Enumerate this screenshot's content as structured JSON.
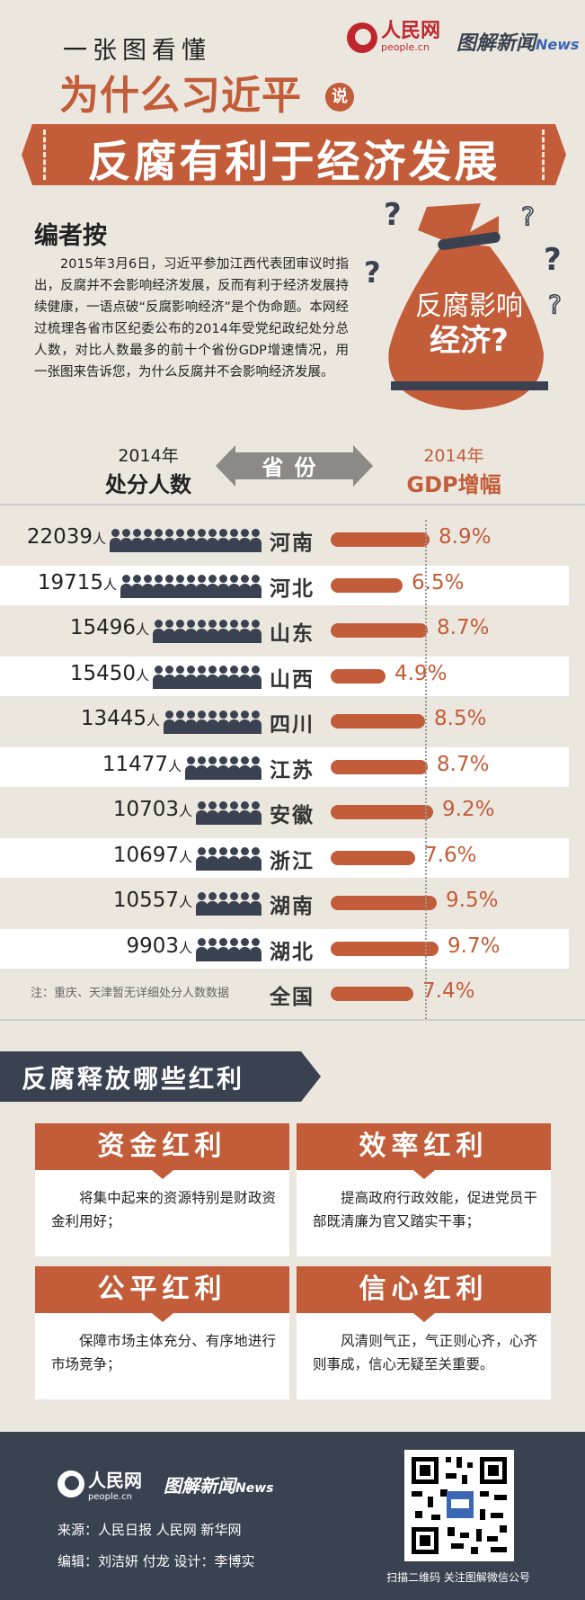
{
  "header": {
    "subtitle": "一张图看懂",
    "logo_name": "人民网",
    "logo_site": "people.cn",
    "logo2_text": "图解新闻",
    "logo2_accent": "News",
    "title_line1": "为什么习近平",
    "title_small": "说",
    "title_line2": "反腐有利于经济发展"
  },
  "editor_note": {
    "title": "编者按",
    "body": "2015年3月6日，习近平参加江西代表团审议时指出，反腐并不会影响经济发展，反而有利于经济发展持续健康，一语点破“反腐影响经济”是个伪命题。本网经过梳理各省市区纪委公布的2014年受党纪政纪处分总人数，对比人数最多的前十个省份GDP增速情况，用一张图来告诉您，为什么反腐并不会影响经济发展。",
    "bag_line1": "反腐影响",
    "bag_line2": "经济?",
    "question_mark": "?"
  },
  "table_header": {
    "left_year": "2014年",
    "left_label": "处分人数",
    "middle_label": "省份",
    "right_year": "2014年",
    "right_label": "GDP增幅"
  },
  "chart_data": {
    "type": "table",
    "columns": [
      "处分人数",
      "省份",
      "GDP增幅"
    ],
    "unit": "人",
    "rows": [
      {
        "count": "22039",
        "province": "河南",
        "gdp": "8.9%",
        "gdp_value": 8.9,
        "icons": 14
      },
      {
        "count": "19715",
        "province": "河北",
        "gdp": "6.5%",
        "gdp_value": 6.5,
        "icons": 13
      },
      {
        "count": "15496",
        "province": "山东",
        "gdp": "8.7%",
        "gdp_value": 8.7,
        "icons": 10
      },
      {
        "count": "15450",
        "province": "山西",
        "gdp": "4.9%",
        "gdp_value": 4.9,
        "icons": 10
      },
      {
        "count": "13445",
        "province": "四川",
        "gdp": "8.5%",
        "gdp_value": 8.5,
        "icons": 9
      },
      {
        "count": "11477",
        "province": "江苏",
        "gdp": "8.7%",
        "gdp_value": 8.7,
        "icons": 7
      },
      {
        "count": "10703",
        "province": "安徽",
        "gdp": "9.2%",
        "gdp_value": 9.2,
        "icons": 6
      },
      {
        "count": "10697",
        "province": "浙江",
        "gdp": "7.6%",
        "gdp_value": 7.6,
        "icons": 6
      },
      {
        "count": "10557",
        "province": "湖南",
        "gdp": "9.5%",
        "gdp_value": 9.5,
        "icons": 6
      },
      {
        "count": "9903",
        "province": "湖北",
        "gdp": "9.7%",
        "gdp_value": 9.7,
        "icons": 6
      },
      {
        "count": "",
        "province": "全国",
        "gdp": "7.4%",
        "gdp_value": 7.4,
        "icons": 0
      }
    ],
    "note": "注：重庆、天津暂无详细处分人数数据",
    "bar_max_value": 9.7,
    "colors": {
      "bar": "#c35c38",
      "people": "#3a4251"
    }
  },
  "benefits": {
    "title": "反腐释放哪些红利",
    "cards": [
      {
        "title": "资金红利",
        "body": "将集中起来的资源特别是财政资金利用好；"
      },
      {
        "title": "效率红利",
        "body": "提高政府行政效能，促进党员干部既清廉为官又踏实干事；"
      },
      {
        "title": "公平红利",
        "body": "保障市场主体充分、有序地进行市场竞争；"
      },
      {
        "title": "信心红利",
        "body": "风清则气正，气正则心齐，心齐则事成，信心无疑至关重要。"
      }
    ]
  },
  "footer": {
    "logo_name": "人民网",
    "logo_site": "people.cn",
    "logo2_text": "图解新闻",
    "logo2_accent": "News",
    "source": "来源：人民日报  人民网  新华网",
    "editors": "编辑：刘洁妍 付龙      设计：李博实",
    "qr_caption": "扫描二维码 关注图解微信公号"
  },
  "colors": {
    "accent": "#c35c38",
    "dark": "#3a4251",
    "background": "#ebe7df",
    "brand_red": "#c0262d"
  }
}
